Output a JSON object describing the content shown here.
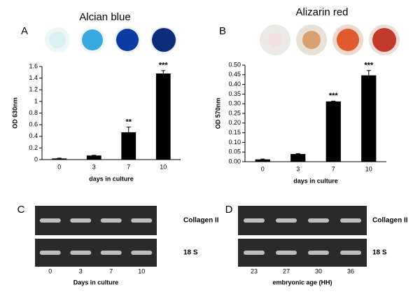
{
  "chart_data": [
    {
      "type": "bar",
      "panel": "A",
      "title": "Alcian blue",
      "xlabel": "days in culture",
      "ylabel": "OD 630nm",
      "categories": [
        "0",
        "3",
        "7",
        "10"
      ],
      "values": [
        0.02,
        0.07,
        0.47,
        1.48
      ],
      "errors": [
        0.005,
        0.005,
        0.09,
        0.05
      ],
      "significance": [
        null,
        null,
        "**",
        "***"
      ],
      "color": "#000000",
      "ylim": [
        0,
        1.6
      ],
      "yticks": [
        0,
        0.2,
        0.4,
        0.6,
        0.8,
        1,
        1.2,
        1.4,
        1.6
      ]
    },
    {
      "type": "bar",
      "panel": "B",
      "title": "Alizarin red",
      "xlabel": "days in culture",
      "ylabel": "OD 570nm",
      "categories": [
        "0",
        "3",
        "7",
        "10"
      ],
      "values": [
        0.012,
        0.04,
        0.312,
        0.447
      ],
      "errors": [
        0.002,
        0.002,
        0.002,
        0.025
      ],
      "significance": [
        null,
        null,
        "***",
        "***"
      ],
      "color": "#000000",
      "ylim": [
        0,
        0.5
      ],
      "yticks": [
        {
          "value": 0,
          "label": "0.00"
        },
        {
          "value": 0.05,
          "label": "0.05"
        },
        {
          "value": 0.1,
          "label": "0.10"
        },
        {
          "value": 0.15,
          "label": "0.15"
        },
        {
          "value": 0.2,
          "label": "0.20"
        },
        {
          "value": 0.25,
          "label": "0.25"
        },
        {
          "value": 0.3,
          "label": "0.30"
        },
        {
          "value": 0.35,
          "label": "0.35"
        },
        {
          "value": 0.4,
          "label": "0.40"
        },
        {
          "value": 0.45,
          "label": "0.45"
        },
        {
          "value": 0.5,
          "label": "0.50"
        }
      ]
    }
  ],
  "gels": [
    {
      "panel": "C",
      "bands": [
        "Collagen II",
        "18 S"
      ],
      "lanes": [
        "0",
        "3",
        "7",
        "10"
      ],
      "xlabel": "Days in culture"
    },
    {
      "panel": "D",
      "bands": [
        "Collagen II",
        "18 S"
      ],
      "lanes": [
        "23",
        "27",
        "30",
        "36"
      ],
      "xlabel": "embryonic age (HH)"
    }
  ]
}
